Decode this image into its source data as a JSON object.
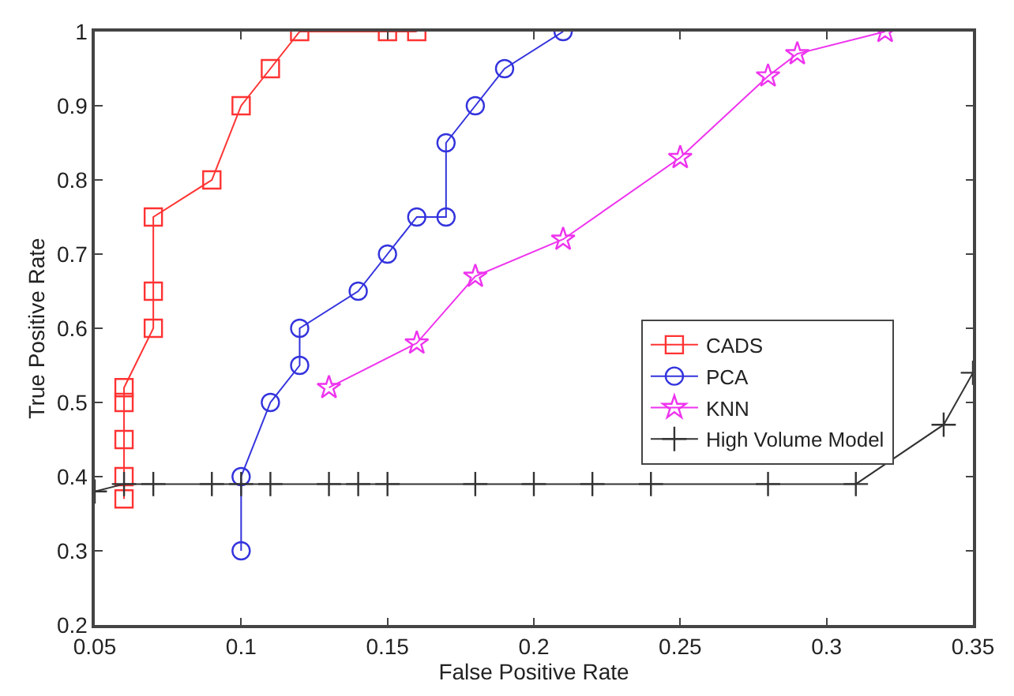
{
  "chart_data": {
    "type": "line",
    "xlabel": "False Positive Rate",
    "ylabel": "True Positive Rate",
    "xlim": [
      0.05,
      0.35
    ],
    "xticks": [
      0.05,
      0.1,
      0.15,
      0.2,
      0.25,
      0.3,
      0.35
    ],
    "ylim": [
      0.2,
      1
    ],
    "yticks": [
      0.2,
      0.3,
      0.4,
      0.5,
      0.6,
      0.7,
      0.8,
      0.9,
      1
    ],
    "legend": "bottom right",
    "series": [
      {
        "name": "CADS",
        "color": "#ff3333",
        "marker": "square",
        "x": [
          0.06,
          0.06,
          0.06,
          0.06,
          0.06,
          0.07,
          0.07,
          0.07,
          0.09,
          0.1,
          0.11,
          0.12,
          0.15,
          0.16
        ],
        "values": [
          0.37,
          0.4,
          0.45,
          0.5,
          0.52,
          0.6,
          0.65,
          0.75,
          0.8,
          0.9,
          0.95,
          1.0,
          1.0,
          1.0
        ]
      },
      {
        "name": "PCA",
        "color": "#3333dd",
        "marker": "circle",
        "x": [
          0.1,
          0.1,
          0.11,
          0.12,
          0.12,
          0.14,
          0.15,
          0.16,
          0.17,
          0.17,
          0.18,
          0.19,
          0.21
        ],
        "values": [
          0.3,
          0.4,
          0.5,
          0.55,
          0.6,
          0.65,
          0.7,
          0.75,
          0.75,
          0.85,
          0.9,
          0.95,
          1.0
        ]
      },
      {
        "name": "KNN",
        "color": "#ee33ee",
        "marker": "star",
        "x": [
          0.13,
          0.16,
          0.18,
          0.21,
          0.25,
          0.28,
          0.29,
          0.32
        ],
        "values": [
          0.52,
          0.58,
          0.67,
          0.72,
          0.83,
          0.94,
          0.97,
          1.0
        ]
      },
      {
        "name": "High Volume Model",
        "color": "#333333",
        "marker": "cross",
        "x": [
          0.05,
          0.06,
          0.07,
          0.09,
          0.1,
          0.11,
          0.13,
          0.14,
          0.15,
          0.18,
          0.2,
          0.22,
          0.24,
          0.28,
          0.31,
          0.34,
          0.35
        ],
        "values": [
          0.38,
          0.39,
          0.39,
          0.39,
          0.39,
          0.39,
          0.39,
          0.39,
          0.39,
          0.39,
          0.39,
          0.39,
          0.39,
          0.39,
          0.39,
          0.47,
          0.54
        ]
      }
    ]
  }
}
